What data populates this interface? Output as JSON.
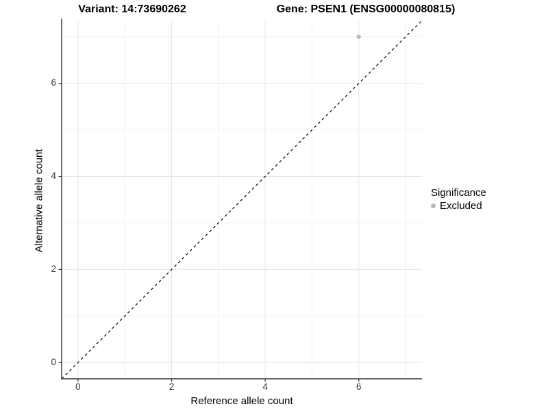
{
  "titles": {
    "variant": "Variant: 14:73690262",
    "gene": "Gene: PSEN1 (ENSG00000080815)"
  },
  "axes": {
    "x": {
      "label": "Reference allele count"
    },
    "y": {
      "label": "Alternative allele count"
    }
  },
  "legend": {
    "title": "Significance",
    "items": [
      {
        "label": "Excluded",
        "color": "#b9b9b9",
        "marker": "circle"
      }
    ]
  },
  "colors": {
    "background": "#ffffff",
    "axis_line": "#333333",
    "grid_major": "#e4e4e4",
    "grid_minor": "#f1f1f1",
    "tick_text": "#333333",
    "title_text": "#000000",
    "identity_line": "#000000",
    "excluded_point": "#b9b9b9"
  },
  "chart_data": {
    "type": "scatter",
    "title": "Variant: 14:73690262 | Gene: PSEN1 (ENSG00000080815)",
    "xlabel": "Reference allele count",
    "ylabel": "Alternative allele count",
    "xlim": [
      -0.35,
      7.35
    ],
    "ylim": [
      -0.35,
      7.35
    ],
    "x_ticks": [
      0,
      2,
      4,
      6
    ],
    "y_ticks": [
      0,
      2,
      4,
      6
    ],
    "x_minor": [
      1,
      3,
      5,
      7
    ],
    "y_minor": [
      1,
      3,
      5,
      7
    ],
    "grid": "major+minor",
    "legend_position": "right",
    "series": [
      {
        "name": "Excluded",
        "color": "#b9b9b9",
        "points": [
          {
            "x": 6,
            "y": 7
          }
        ]
      }
    ],
    "reference_line": {
      "kind": "identity",
      "equation": "y = x",
      "style": "dashed",
      "color": "#000000",
      "slope": 1,
      "intercept": 0
    }
  }
}
